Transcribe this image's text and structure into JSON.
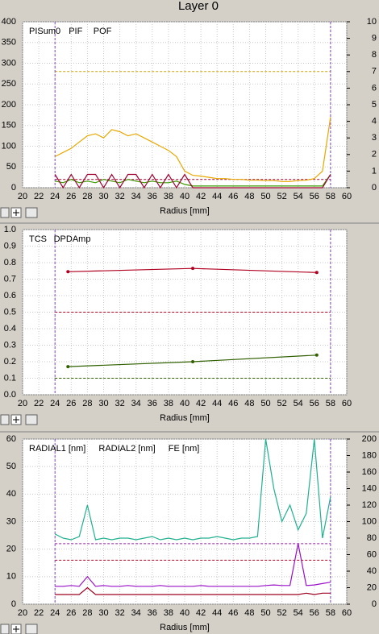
{
  "title": "Layer 0",
  "chart_data": [
    {
      "type": "line",
      "x_label": "Radius [mm]",
      "xlim": [
        20,
        60
      ],
      "xticks": [
        20,
        22,
        24,
        26,
        28,
        30,
        32,
        34,
        36,
        38,
        40,
        42,
        44,
        46,
        48,
        50,
        52,
        54,
        56,
        58,
        60
      ],
      "ylim": [
        0,
        400
      ],
      "yticks": [
        0,
        50,
        100,
        150,
        200,
        250,
        300,
        350,
        400
      ],
      "y2lim": [
        0,
        10
      ],
      "y2ticks": [
        0,
        1,
        2,
        3,
        4,
        5,
        6,
        7,
        8,
        9,
        10
      ],
      "grid": true,
      "vertical_markers": {
        "color": "#8040e0",
        "x": [
          24,
          58
        ]
      },
      "reference_lines": [
        {
          "value": 280,
          "color": "#c8a000"
        },
        {
          "value": 20,
          "color": "#a00030"
        }
      ],
      "series": [
        {
          "name": "PISum0",
          "color": "#e8a800",
          "x": [
            24,
            25,
            26,
            27,
            28,
            29,
            30,
            31,
            32,
            33,
            34,
            35,
            36,
            37,
            38,
            39,
            40,
            41,
            42,
            43,
            44,
            45,
            46,
            47,
            48,
            49,
            50,
            51,
            52,
            53,
            54,
            55,
            56,
            57,
            58
          ],
          "values": [
            75,
            85,
            95,
            110,
            125,
            130,
            120,
            140,
            135,
            125,
            130,
            120,
            110,
            100,
            90,
            75,
            40,
            30,
            28,
            25,
            22,
            22,
            20,
            20,
            18,
            18,
            17,
            17,
            15,
            15,
            17,
            18,
            22,
            40,
            170
          ]
        },
        {
          "name": "PIF",
          "color": "#3a9a00",
          "axis": "y2",
          "x": [
            24,
            25,
            26,
            27,
            28,
            29,
            30,
            31,
            32,
            33,
            34,
            35,
            36,
            37,
            38,
            39,
            40,
            41,
            42,
            43,
            44,
            45,
            46,
            47,
            48,
            49,
            50,
            51,
            52,
            53,
            54,
            55,
            56,
            57,
            58
          ],
          "values": [
            0.4,
            0.3,
            0.5,
            0.3,
            0.4,
            0.3,
            0.5,
            0.4,
            0.3,
            0.5,
            0.4,
            0.3,
            0.4,
            0.3,
            0.3,
            0.4,
            0.2,
            0.1,
            0.1,
            0.1,
            0.1,
            0.1,
            0.1,
            0.1,
            0.1,
            0.1,
            0.1,
            0.1,
            0.1,
            0.1,
            0.1,
            0.1,
            0.1,
            0.1,
            0.8
          ]
        },
        {
          "name": "POF",
          "color": "#a00030",
          "axis": "y2",
          "x": [
            24,
            25,
            26,
            27,
            28,
            29,
            30,
            31,
            32,
            33,
            34,
            35,
            36,
            37,
            38,
            39,
            40,
            41,
            42,
            43,
            44,
            45,
            46,
            47,
            48,
            49,
            50,
            51,
            52,
            53,
            54,
            55,
            56,
            57,
            58
          ],
          "values": [
            0.8,
            0,
            0.8,
            0,
            0.8,
            0.8,
            0,
            0.8,
            0,
            0.8,
            0.8,
            0,
            0.8,
            0,
            0.8,
            0,
            0.8,
            0,
            0,
            0,
            0,
            0,
            0,
            0,
            0,
            0,
            0,
            0,
            0,
            0,
            0,
            0,
            0,
            0,
            0.8
          ]
        }
      ]
    },
    {
      "type": "line",
      "x_label": "Radius [mm]",
      "xlim": [
        20,
        60
      ],
      "xticks": [
        20,
        22,
        24,
        26,
        28,
        30,
        32,
        34,
        36,
        38,
        40,
        42,
        44,
        46,
        48,
        50,
        52,
        54,
        56,
        58,
        60
      ],
      "ylim": [
        0,
        1
      ],
      "yticks": [
        {
          "value": 0,
          "label": "0.0"
        },
        0.1,
        0.2,
        0.3,
        0.4,
        0.5,
        0.6,
        0.7,
        0.8,
        0.9,
        {
          "value": 1,
          "label": "1.0"
        }
      ],
      "grid": true,
      "vertical_markers": {
        "color": "#8040e0",
        "x": [
          24,
          58
        ]
      },
      "reference_lines": [
        {
          "value": 0.5,
          "color": "#b00020"
        },
        {
          "value": 0.1,
          "color": "#306000"
        }
      ],
      "series": [
        {
          "name": "TCS",
          "color": "#306000",
          "markers": true,
          "x": [
            25.6,
            41,
            56.3
          ],
          "values": [
            0.17,
            0.2,
            0.24
          ]
        },
        {
          "name": "DPDAmp",
          "color": "#b00020",
          "markers": true,
          "x": [
            25.6,
            41,
            56.3
          ],
          "values": [
            0.745,
            0.765,
            0.74
          ]
        }
      ]
    },
    {
      "type": "line",
      "x_label": "Radius [mm]",
      "xlim": [
        20,
        60
      ],
      "xticks": [
        20,
        22,
        24,
        26,
        28,
        30,
        32,
        34,
        36,
        38,
        40,
        42,
        44,
        46,
        48,
        50,
        52,
        54,
        56,
        58,
        60
      ],
      "ylim": [
        0,
        60
      ],
      "yticks": [
        0,
        10,
        20,
        30,
        40,
        50,
        60
      ],
      "y2lim": [
        0,
        200
      ],
      "y2ticks": [
        0,
        20,
        40,
        60,
        80,
        100,
        120,
        140,
        160,
        180,
        200
      ],
      "grid": true,
      "vertical_markers": {
        "color": "#8040e0",
        "x": [
          24,
          58
        ]
      },
      "reference_lines": [
        {
          "value": 22,
          "color": "#9020a0"
        },
        {
          "value": 16,
          "color": "#b00020"
        }
      ],
      "series": [
        {
          "name": "RADIAL1 [nm]",
          "color": "#9a10c8",
          "x": [
            24,
            25,
            26,
            27,
            28,
            29,
            30,
            31,
            32,
            33,
            34,
            35,
            36,
            37,
            38,
            39,
            40,
            41,
            42,
            43,
            44,
            45,
            46,
            47,
            48,
            49,
            50,
            51,
            52,
            53,
            54,
            55,
            56,
            57,
            58
          ],
          "values": [
            6.5,
            6.5,
            6.8,
            6.5,
            10,
            6.5,
            6.8,
            6.5,
            6.5,
            6.8,
            6.5,
            6.5,
            6.5,
            6.8,
            6.5,
            6.5,
            6.5,
            6.5,
            6.8,
            6.5,
            6.5,
            6.5,
            6.5,
            6.5,
            6.5,
            6.5,
            6.8,
            7,
            6.8,
            6.8,
            22,
            6.8,
            7,
            7.5,
            8
          ]
        },
        {
          "name": "RADIAL2 [nm]",
          "color": "#a00020",
          "x": [
            24,
            25,
            26,
            27,
            28,
            29,
            30,
            31,
            32,
            33,
            34,
            35,
            36,
            37,
            38,
            39,
            40,
            41,
            42,
            43,
            44,
            45,
            46,
            47,
            48,
            49,
            50,
            51,
            52,
            53,
            54,
            55,
            56,
            57,
            58
          ],
          "values": [
            3.5,
            3.5,
            3.5,
            3.5,
            6,
            3.5,
            3.5,
            3.5,
            3.5,
            3.5,
            3.5,
            3.5,
            3.5,
            3.5,
            3.5,
            3.5,
            3.5,
            3.5,
            3.5,
            3.5,
            3.5,
            3.5,
            3.5,
            3.5,
            3.5,
            3.5,
            3.5,
            3.5,
            3.5,
            3.5,
            3.5,
            4,
            3.5,
            4,
            4
          ]
        },
        {
          "name": "FE [nm]",
          "color": "#20b090",
          "axis": "y2",
          "x": [
            24,
            25,
            26,
            27,
            28,
            29,
            30,
            31,
            32,
            33,
            34,
            35,
            36,
            37,
            38,
            39,
            40,
            41,
            42,
            43,
            44,
            45,
            46,
            47,
            48,
            49,
            50,
            51,
            52,
            53,
            54,
            55,
            56,
            57,
            58
          ],
          "values": [
            85,
            80,
            78,
            82,
            120,
            78,
            80,
            78,
            80,
            80,
            78,
            80,
            82,
            78,
            80,
            78,
            80,
            78,
            80,
            80,
            82,
            80,
            78,
            80,
            80,
            82,
            200,
            140,
            100,
            120,
            90,
            110,
            200,
            80,
            130
          ]
        }
      ]
    }
  ]
}
